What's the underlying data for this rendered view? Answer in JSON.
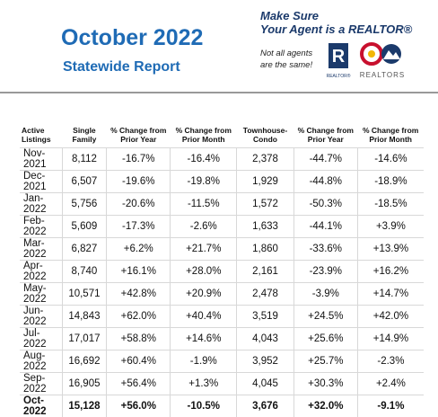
{
  "header": {
    "title": "October 2022",
    "subtitle": "Statewide Report",
    "tagline": [
      "Make Sure",
      "Your Agent is a REALTOR®"
    ],
    "note": [
      "Not all agents",
      "are the same!"
    ],
    "logos": [
      "REALTOR®",
      "REALTORS"
    ]
  },
  "table": {
    "columns": [
      "Active Listings",
      "Single Family",
      "% Change from Prior Year",
      "% Change from Prior Month",
      "Townhouse-Condo",
      "% Change from Prior Year",
      "% Change from Prior Month"
    ],
    "rows": [
      [
        "Nov-2021",
        "8,112",
        "-16.7%",
        "-16.4%",
        "2,378",
        "-44.7%",
        "-14.6%"
      ],
      [
        "Dec-2021",
        "6,507",
        "-19.6%",
        "-19.8%",
        "1,929",
        "-44.8%",
        "-18.9%"
      ],
      [
        "Jan-2022",
        "5,756",
        "-20.6%",
        "-11.5%",
        "1,572",
        "-50.3%",
        "-18.5%"
      ],
      [
        "Feb-2022",
        "5,609",
        "-17.3%",
        "-2.6%",
        "1,633",
        "-44.1%",
        "+3.9%"
      ],
      [
        "Mar-2022",
        "6,827",
        "+6.2%",
        "+21.7%",
        "1,860",
        "-33.6%",
        "+13.9%"
      ],
      [
        "Apr-2022",
        "8,740",
        "+16.1%",
        "+28.0%",
        "2,161",
        "-23.9%",
        "+16.2%"
      ],
      [
        "May-2022",
        "10,571",
        "+42.8%",
        "+20.9%",
        "2,478",
        "-3.9%",
        "+14.7%"
      ],
      [
        "Jun-2022",
        "14,843",
        "+62.0%",
        "+40.4%",
        "3,519",
        "+24.5%",
        "+42.0%"
      ],
      [
        "Jul-2022",
        "17,017",
        "+58.8%",
        "+14.6%",
        "4,043",
        "+25.6%",
        "+14.9%"
      ],
      [
        "Aug-2022",
        "16,692",
        "+60.4%",
        "-1.9%",
        "3,952",
        "+25.7%",
        "-2.3%"
      ],
      [
        "Sep-2022",
        "16,905",
        "+56.4%",
        "+1.3%",
        "4,045",
        "+30.3%",
        "+2.4%"
      ],
      [
        "Oct-2022",
        "15,128",
        "+56.0%",
        "-10.5%",
        "3,676",
        "+32.0%",
        "-9.1%"
      ]
    ]
  }
}
